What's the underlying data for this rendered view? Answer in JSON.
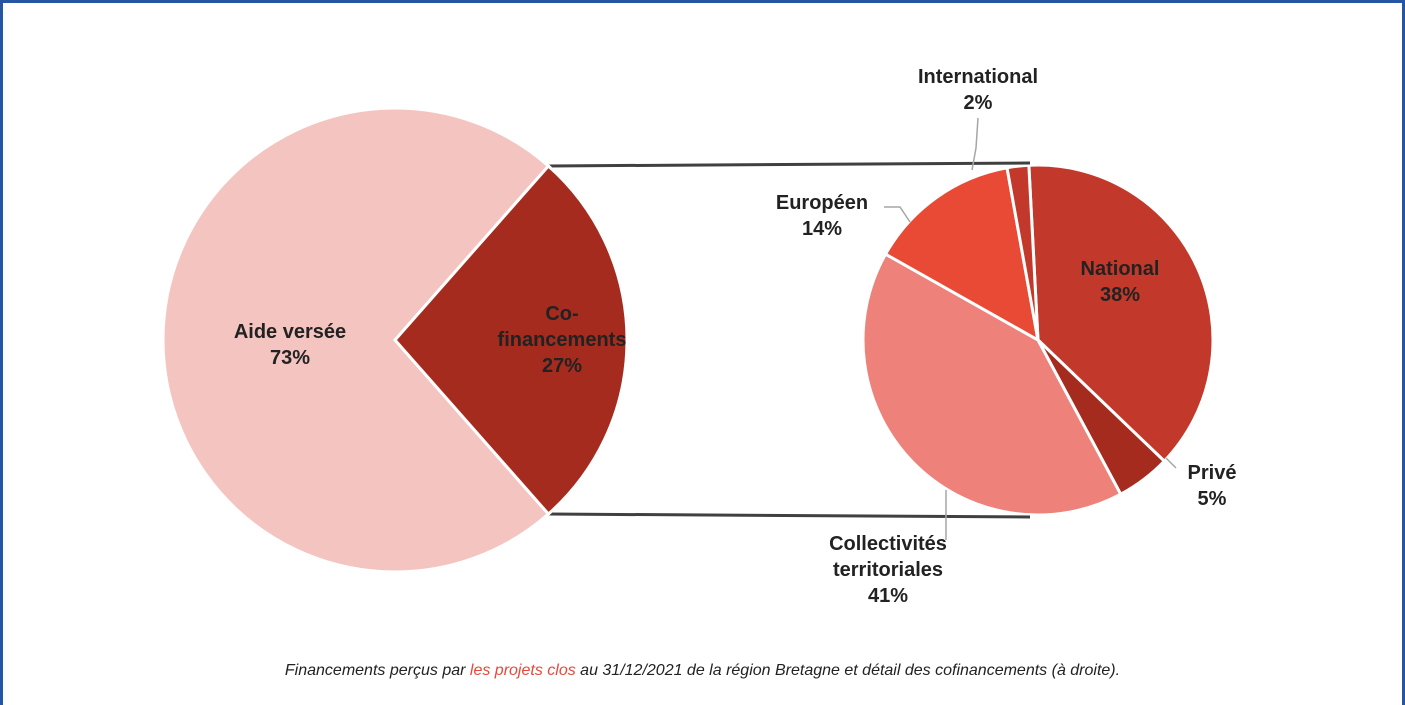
{
  "chart_data": [
    {
      "type": "pie",
      "categories": [
        "Aide versée",
        "Co-financements"
      ],
      "values": [
        73,
        27
      ],
      "value_labels": [
        "73%",
        "27%"
      ],
      "colors": [
        "#f4c4c0",
        "#a52b1f"
      ]
    },
    {
      "type": "pie",
      "categories": [
        "National",
        "Privé",
        "Collectivités territoriales",
        "Européen",
        "International"
      ],
      "values": [
        38,
        5,
        41,
        14,
        2
      ],
      "value_labels": [
        "38%",
        "5%",
        "41%",
        "14%",
        "2%"
      ],
      "colors": [
        "#c2382a",
        "#a52b1f",
        "#ee827a",
        "#e84a35",
        "#c2382a"
      ]
    }
  ],
  "caption": {
    "before": "Financements perçus par ",
    "link": "les projets clos",
    "after": " au 31/12/2021 de la région Bretagne et détail des cofinancements (à droite)."
  }
}
